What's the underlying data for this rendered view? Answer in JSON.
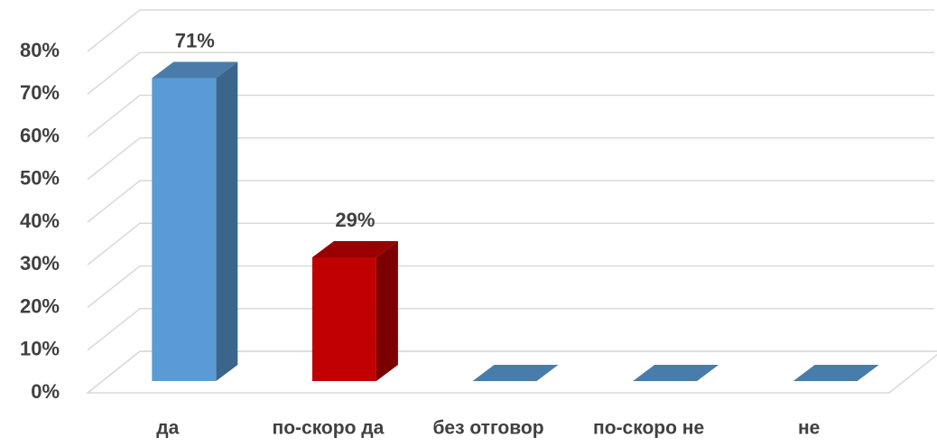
{
  "chart_data": {
    "type": "bar3d",
    "categories": [
      "да",
      "по-скоро да",
      "без отговор",
      "по-скоро не",
      "не"
    ],
    "values": [
      71,
      29,
      0,
      0,
      0
    ],
    "value_labels": [
      "71%",
      "29%",
      null,
      null,
      null
    ],
    "colors": [
      "#5b9bd5",
      "#c00000",
      "#5b9bd5",
      "#5b9bd5",
      "#5b9bd5"
    ],
    "ylim": [
      0,
      80
    ],
    "yticks": [
      {
        "value": 0,
        "label": "0%"
      },
      {
        "value": 10,
        "label": "10%"
      },
      {
        "value": 20,
        "label": "20%"
      },
      {
        "value": 30,
        "label": "30%"
      },
      {
        "value": 40,
        "label": "40%"
      },
      {
        "value": 50,
        "label": "50%"
      },
      {
        "value": 60,
        "label": "60%"
      },
      {
        "value": 70,
        "label": "70%"
      },
      {
        "value": 80,
        "label": "80%"
      }
    ],
    "grid": true
  }
}
